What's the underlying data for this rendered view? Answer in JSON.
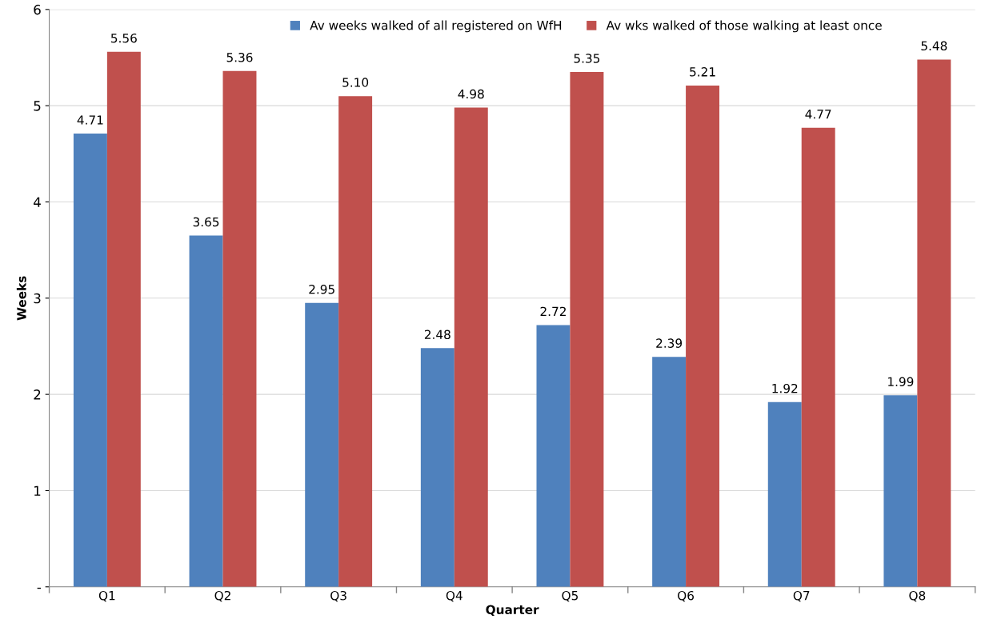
{
  "chart_data": {
    "type": "bar",
    "xlabel": "Quarter",
    "ylabel": "Weeks",
    "categories": [
      "Q1",
      "Q2",
      "Q3",
      "Q4",
      "Q5",
      "Q6",
      "Q7",
      "Q8"
    ],
    "series": [
      {
        "name": "Av weeks walked of all registered on WfH",
        "color": "#4f81bd",
        "values": [
          4.71,
          3.65,
          2.95,
          2.48,
          2.72,
          2.39,
          1.92,
          1.99
        ],
        "value_labels": [
          "4.71",
          "3.65",
          "2.95",
          "2.48",
          "2.72",
          "2.39",
          "1.92",
          "1.99"
        ]
      },
      {
        "name": "Av wks walked of those walking at least once",
        "color": "#c0504d",
        "values": [
          5.56,
          5.36,
          5.1,
          4.98,
          5.35,
          5.21,
          4.77,
          5.48
        ],
        "value_labels": [
          "5.56",
          "5.36",
          "5.10",
          "4.98",
          "5.35",
          "5.21",
          "4.77",
          "5.48"
        ]
      }
    ],
    "ylim": [
      0,
      6
    ],
    "yticks": [
      {
        "value": 0,
        "label": "-"
      },
      1,
      2,
      3,
      4,
      5,
      6
    ],
    "grid": "y",
    "legend": "top"
  }
}
